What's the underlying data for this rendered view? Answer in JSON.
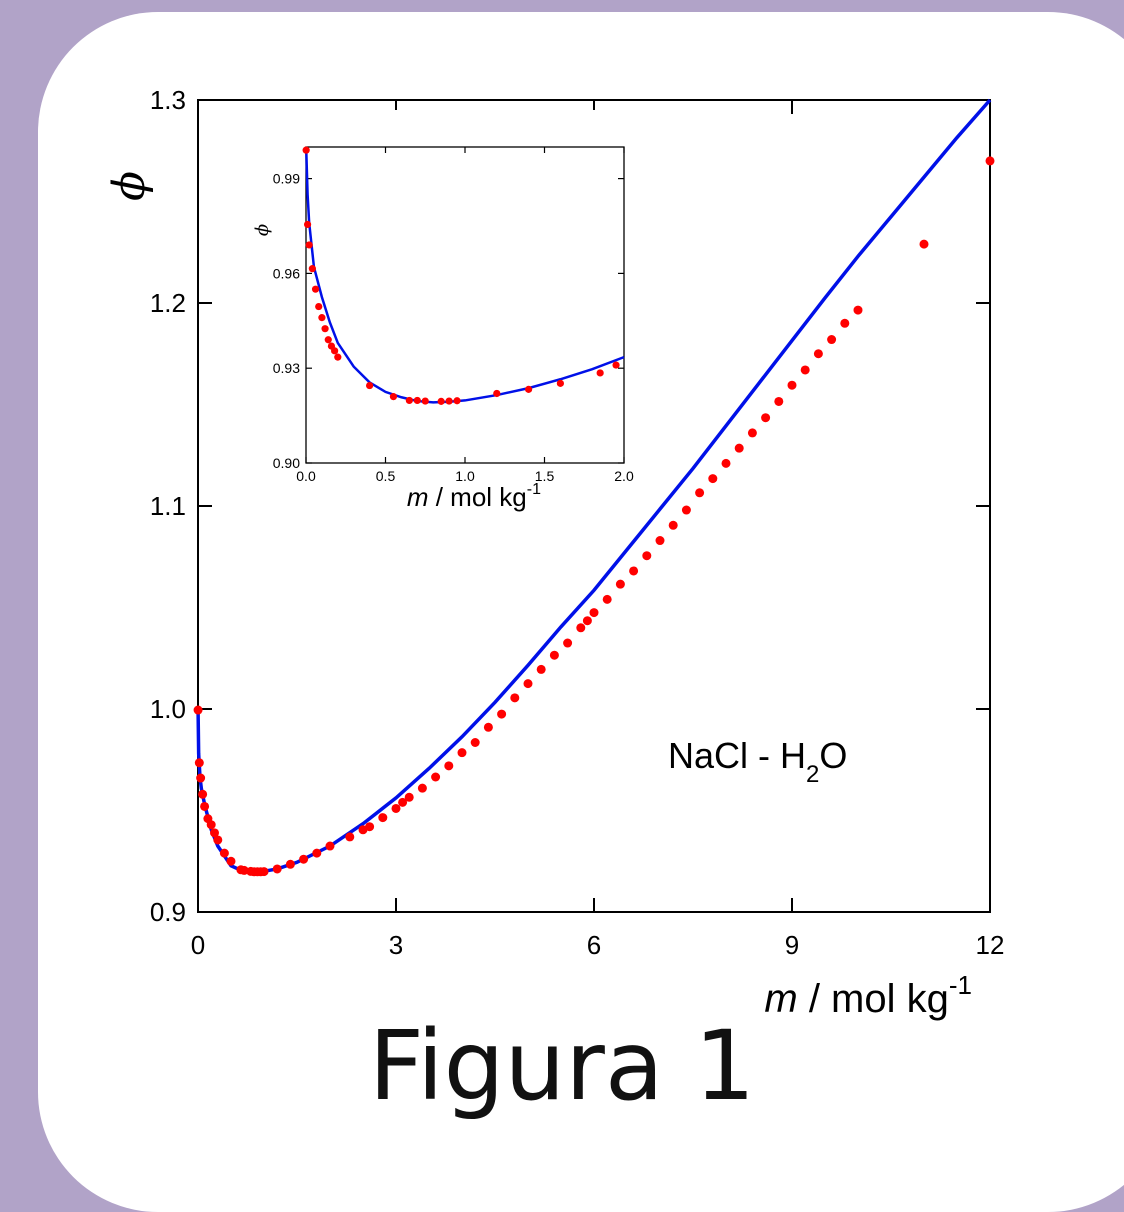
{
  "caption": "Figura 1",
  "colors": {
    "background": "#b1a3c8",
    "card": "#ffffff",
    "fit_line": "#0010e8",
    "points": "#ff0000",
    "axis": "#000000"
  },
  "chart_data": [
    {
      "type": "scatter",
      "annotation": {
        "main": "NaCl - H",
        "sub": "2",
        "tail": "O"
      },
      "ylabel": "ϕ",
      "xlabel": {
        "var": "m",
        "unit": " / mol kg",
        "sup": "-1"
      },
      "xlim": [
        0,
        12
      ],
      "ylim": [
        0.9,
        1.3
      ],
      "xticks": [
        0,
        3,
        6,
        9,
        12
      ],
      "xtick_labels": [
        "0",
        "3",
        "6",
        "9",
        "12"
      ],
      "yticks": [
        0.9,
        1.0,
        1.1,
        1.2,
        1.3
      ],
      "ytick_labels": [
        "0.9",
        "1.0",
        "1.1",
        "1.2",
        "1.3"
      ],
      "series": [
        {
          "type": "line",
          "values": [
            [
              0.001,
              0.9995
            ],
            [
              0.01,
              0.978
            ],
            [
              0.03,
              0.9665
            ],
            [
              0.05,
              0.961
            ],
            [
              0.1,
              0.953
            ],
            [
              0.2,
              0.9406
            ],
            [
              0.3,
              0.9325
            ],
            [
              0.5,
              0.9228
            ],
            [
              0.7,
              0.9198
            ],
            [
              0.9,
              0.9195
            ],
            [
              1.2,
              0.9212
            ],
            [
              1.5,
              0.9245
            ],
            [
              2,
              0.9325
            ],
            [
              2.5,
              0.9435
            ],
            [
              3,
              0.9562
            ],
            [
              3.5,
              0.9707
            ],
            [
              4,
              0.9863
            ],
            [
              4.5,
              1.0033
            ],
            [
              5,
              1.0215
            ],
            [
              5.5,
              1.0405
            ],
            [
              6,
              1.0585
            ],
            [
              6.5,
              1.0785
            ],
            [
              7,
              1.0985
            ],
            [
              7.5,
              1.1185
            ],
            [
              8,
              1.1395
            ],
            [
              8.5,
              1.1605
            ],
            [
              9,
              1.1815
            ],
            [
              9.5,
              1.2025
            ],
            [
              10,
              1.223
            ],
            [
              10.5,
              1.2425
            ],
            [
              11,
              1.262
            ],
            [
              11.5,
              1.2815
            ],
            [
              12,
              1.3
            ]
          ]
        },
        {
          "type": "scatter",
          "values": [
            [
              0.001,
              0.9995
            ],
            [
              0.02,
              0.9735
            ],
            [
              0.04,
              0.966
            ],
            [
              0.07,
              0.958
            ],
            [
              0.1,
              0.952
            ],
            [
              0.15,
              0.946
            ],
            [
              0.2,
              0.943
            ],
            [
              0.25,
              0.939
            ],
            [
              0.3,
              0.9355
            ],
            [
              0.4,
              0.929
            ],
            [
              0.5,
              0.925
            ],
            [
              0.65,
              0.9208
            ],
            [
              0.7,
              0.9205
            ],
            [
              0.8,
              0.92
            ],
            [
              0.85,
              0.9198
            ],
            [
              0.9,
              0.9198
            ],
            [
              0.95,
              0.9198
            ],
            [
              1.0,
              0.9199
            ],
            [
              1.2,
              0.9212
            ],
            [
              1.4,
              0.9235
            ],
            [
              1.6,
              0.926
            ],
            [
              1.8,
              0.929
            ],
            [
              2.0,
              0.9325
            ],
            [
              2.3,
              0.937
            ],
            [
              2.5,
              0.9405
            ],
            [
              2.6,
              0.942
            ],
            [
              2.8,
              0.9465
            ],
            [
              3.0,
              0.951
            ],
            [
              3.1,
              0.954
            ],
            [
              3.2,
              0.9565
            ],
            [
              3.4,
              0.961
            ],
            [
              3.6,
              0.9665
            ],
            [
              3.8,
              0.972
            ],
            [
              4.0,
              0.9785
            ],
            [
              4.2,
              0.9835
            ],
            [
              4.4,
              0.991
            ],
            [
              4.6,
              0.9975
            ],
            [
              4.8,
              1.0055
            ],
            [
              5.0,
              1.0125
            ],
            [
              5.2,
              1.0195
            ],
            [
              5.4,
              1.0265
            ],
            [
              5.6,
              1.0325
            ],
            [
              5.8,
              1.04
            ],
            [
              5.9,
              1.0435
            ],
            [
              6.0,
              1.0475
            ],
            [
              6.2,
              1.054
            ],
            [
              6.4,
              1.0615
            ],
            [
              6.6,
              1.068
            ],
            [
              6.8,
              1.0755
            ],
            [
              7.0,
              1.083
            ],
            [
              7.2,
              1.0905
            ],
            [
              7.4,
              1.098
            ],
            [
              7.6,
              1.1065
            ],
            [
              7.8,
              1.1135
            ],
            [
              8.0,
              1.121
            ],
            [
              8.2,
              1.1285
            ],
            [
              8.4,
              1.136
            ],
            [
              8.6,
              1.1435
            ],
            [
              8.8,
              1.1515
            ],
            [
              9.0,
              1.1595
            ],
            [
              9.2,
              1.167
            ],
            [
              9.4,
              1.175
            ],
            [
              9.6,
              1.182
            ],
            [
              9.8,
              1.19
            ],
            [
              10.0,
              1.1965
            ],
            [
              11.0,
              1.229
            ],
            [
              12.0,
              1.27
            ]
          ]
        }
      ]
    },
    {
      "type": "scatter",
      "ylabel": "ϕ",
      "xlabel": {
        "var": "m",
        "unit": " / mol kg",
        "sup": "-1"
      },
      "xlim": [
        0,
        2
      ],
      "ylim": [
        0.9,
        1.0
      ],
      "xticks": [
        0,
        0.5,
        1.0,
        1.5,
        2.0
      ],
      "xtick_labels": [
        "0.0",
        "0.5",
        "1.0",
        "1.5",
        "2.0"
      ],
      "yticks": [
        0.9,
        0.93,
        0.96,
        0.99
      ],
      "ytick_labels": [
        "0.90",
        "0.93",
        "0.96",
        "0.99"
      ],
      "series": [
        {
          "type": "line",
          "values": [
            [
              0.001,
              1.0
            ],
            [
              0.01,
              0.985
            ],
            [
              0.02,
              0.976
            ],
            [
              0.05,
              0.962
            ],
            [
              0.1,
              0.9525
            ],
            [
              0.15,
              0.9445
            ],
            [
              0.2,
              0.938
            ],
            [
              0.3,
              0.9305
            ],
            [
              0.4,
              0.9255
            ],
            [
              0.5,
              0.9225
            ],
            [
              0.6,
              0.9208
            ],
            [
              0.7,
              0.9196
            ],
            [
              0.8,
              0.9192
            ],
            [
              0.9,
              0.9194
            ],
            [
              1.0,
              0.9198
            ],
            [
              1.2,
              0.9215
            ],
            [
              1.4,
              0.9237
            ],
            [
              1.6,
              0.9265
            ],
            [
              1.8,
              0.9297
            ],
            [
              2.0,
              0.9335
            ]
          ]
        },
        {
          "type": "scatter",
          "values": [
            [
              0.001,
              0.999
            ],
            [
              0.01,
              0.9755
            ],
            [
              0.02,
              0.969
            ],
            [
              0.04,
              0.9615
            ],
            [
              0.06,
              0.955
            ],
            [
              0.08,
              0.9495
            ],
            [
              0.1,
              0.946
            ],
            [
              0.12,
              0.9425
            ],
            [
              0.14,
              0.939
            ],
            [
              0.16,
              0.937
            ],
            [
              0.18,
              0.9355
            ],
            [
              0.2,
              0.9335
            ],
            [
              0.4,
              0.9245
            ],
            [
              0.55,
              0.921
            ],
            [
              0.65,
              0.9198
            ],
            [
              0.7,
              0.9198
            ],
            [
              0.75,
              0.9196
            ],
            [
              0.85,
              0.9195
            ],
            [
              0.9,
              0.9196
            ],
            [
              0.95,
              0.9197
            ],
            [
              1.2,
              0.922
            ],
            [
              1.4,
              0.9233
            ],
            [
              1.6,
              0.9252
            ],
            [
              1.85,
              0.9285
            ],
            [
              1.95,
              0.931
            ]
          ]
        }
      ]
    }
  ]
}
